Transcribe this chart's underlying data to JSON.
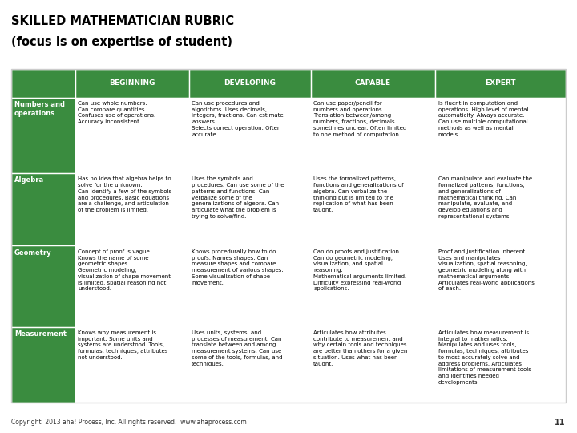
{
  "title_line1": "SKILLED MATHEMATICIAN RUBRIC",
  "title_line2": "(focus is on expertise of student)",
  "header_bg": "#3a8c3f",
  "header_text_color": "#ffffff",
  "row_label_bg": "#3a8c3f",
  "row_label_text_color": "#ffffff",
  "cell_bg": "#ffffff",
  "alt_cell_bg": "#ffffff",
  "border_color": "#aaaaaa",
  "title_color": "#000000",
  "footer_text": "Copyright  2013 aha! Process, Inc. All rights reserved.  www.ahaprocess.com",
  "footer_page": "11",
  "columns": [
    "",
    "BEGINNING",
    "DEVELOPING",
    "CAPABLE",
    "EXPERT"
  ],
  "rows": [
    {
      "label": "Numbers and\noperations",
      "beginning": "Can use whole numbers.\nCan compare quantities.\nConfuses use of operations.\nAccuracy inconsistent.",
      "developing": "Can use procedures and\nalgorithms. Uses decimals,\nintegers, fractions. Can estimate\nanswers.\nSelects correct operation. Often\naccurate.",
      "capable": "Can use paper/pencil for\nnumbers and operations.\nTranslation between/among\nnumbers, fractions, decimals\nsometimes unclear. Often limited\nto one method of computation.",
      "expert": "Is fluent in computation and\noperations. High level of mental\nautomaticity. Always accurate.\nCan use multiple computational\nmethods as well as mental\nmodels."
    },
    {
      "label": "Algebra",
      "beginning": "Has no idea that algebra helps to\nsolve for the unknown.\nCan identify a few of the symbols\nand procedures. Basic equations\nare a challenge, and articulation\nof the problem is limited.",
      "developing": "Uses the symbols and\nprocedures. Can use some of the\npatterns and functions. Can\nverbalize some of the\ngeneralizations of algebra. Can\narticulate what the problem is\ntrying to solve/find.",
      "capable": "Uses the formalized patterns,\nfunctions and generalizations of\nalgebra. Can verbalize the\nthinking but is limited to the\nreplication of what has been\ntaught.",
      "expert": "Can manipulate and evaluate the\nformalized patterns, functions,\nand generalizations of\nmathematical thinking. Can\nmanipulate, evaluate, and\ndevelop equations and\nrepresentational systems."
    },
    {
      "label": "Geometry",
      "beginning": "Concept of proof is vague.\nKnows the name of some\ngeometric shapes.\nGeometric modeling,\nvisualization of shape movement\nis limited, spatial reasoning not\nunderstood.",
      "developing": "Knows procedurally how to do\nproofs. Names shapes. Can\nmeasure shapes and compare\nmeasurement of various shapes.\nSome visualization of shape\nmovement.",
      "capable": "Can do proofs and justification.\nCan do geometric modeling,\nvisualization, and spatial\nreasoning.\nMathematical arguments limited.\nDifficulty expressing real-World\napplications.",
      "expert": "Proof and justification inherent.\nUses and manipulates\nvisualization, spatial reasoning,\ngeometric modeling along with\nmathematical arguments.\nArticulates real-World applications\nof each."
    },
    {
      "label": "Measurement",
      "beginning": "Knows why measurement is\nimportant. Some units and\nsystems are understood. Tools,\nformulas, techniques, attributes\nnot understood.",
      "developing": "Uses units, systems, and\nprocesses of measurement. Can\ntranslate between and among\nmeasurement systems. Can use\nsome of the tools, formulas, and\ntechniques.",
      "capable": "Articulates how attributes\ncontribute to measurement and\nwhy certain tools and techniques\nare better than others for a given\nsituation. Uses what has been\ntaught.",
      "expert": "Articulates how measurement is\nintegral to mathematics.\nManipulates and uses tools,\nformulas, techniques, attributes\nto most accurately solve and\naddress problems. Articulates\nlimitations of measurement tools\nand identifies needed\ndevelopments."
    }
  ]
}
